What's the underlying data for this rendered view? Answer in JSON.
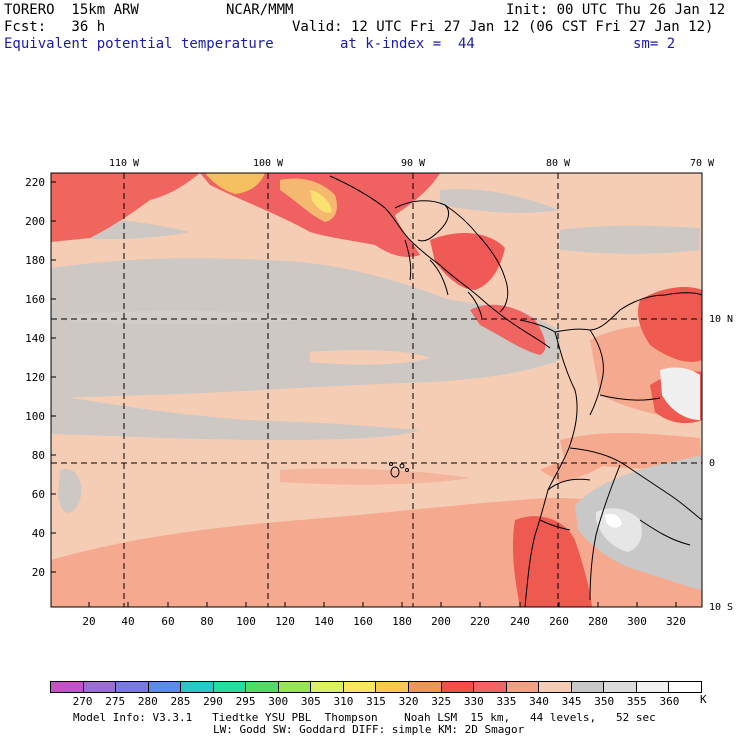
{
  "header": {
    "model": "TORERO  15km ARW",
    "center": "NCAR/MMM",
    "init": "Init: 00 UTC Thu 26 Jan 12",
    "fcst": "Fcst:   36 h",
    "valid": "Valid: 12 UTC Fri 27 Jan 12 (06 CST Fri 27 Jan 12)",
    "field": "Equivalent potential temperature",
    "level": "at k-index =  44",
    "smooth": "sm= 2"
  },
  "axes": {
    "top_lon": [
      "110 W",
      "100 W",
      "90 W",
      "80 W",
      "70 W"
    ],
    "right_lat": [
      "10 N",
      "0",
      "10 S"
    ],
    "left_y": [
      "220",
      "200",
      "180",
      "160",
      "140",
      "120",
      "100",
      "80",
      "60",
      "40",
      "20"
    ],
    "bottom_x": [
      "20",
      "40",
      "60",
      "80",
      "100",
      "120",
      "140",
      "160",
      "180",
      "200",
      "220",
      "240",
      "260",
      "280",
      "300",
      "320"
    ]
  },
  "colorbar": {
    "labels": [
      "270",
      "275",
      "280",
      "285",
      "290",
      "295",
      "300",
      "305",
      "310",
      "315",
      "320",
      "325",
      "330",
      "335",
      "340",
      "345",
      "350",
      "355",
      "360"
    ],
    "unit": "K",
    "colors": [
      "#c850c8",
      "#9b6ed2",
      "#7878e6",
      "#5a8cf0",
      "#28c8c8",
      "#28dca0",
      "#50dc64",
      "#96e650",
      "#dcf064",
      "#fae664",
      "#fac850",
      "#f09650",
      "#f05046",
      "#f06464",
      "#f5a082",
      "#f5cdb4",
      "#c8c8c8",
      "#dcdcdc",
      "#f0f0f0",
      "#ffffff"
    ]
  },
  "footer": {
    "line1": "Model Info: V3.3.1   Tiedtke YSU PBL  Thompson    Noah LSM  15 km,   44 levels,   52 sec",
    "line2": "LW: Godd SW: Goddard DIFF: simple KM: 2D Smagor"
  }
}
